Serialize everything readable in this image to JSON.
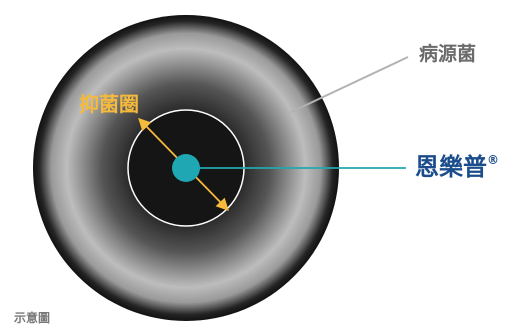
{
  "labels": {
    "pathogen": "病源菌",
    "inhibition_zone": "抑菌圈",
    "drug": "恩樂普",
    "drug_mark": "®",
    "schematic": "示意圖"
  },
  "colors": {
    "pathogen_line": "#b3b3b3",
    "pathogen_text": "#6b6b6b",
    "inhibition_text": "#f5b93c",
    "inhibition_arrow": "#f5b93c",
    "drug_line": "#1fa7b3",
    "drug_text": "#1b4d8c",
    "drug_dot": "#1fa7b3",
    "disc_dark": "#1a1a1a",
    "disc_light": "#f0f0f0",
    "inner_ring": "#ffffff",
    "schematic_text": "#7a7a7a"
  }
}
